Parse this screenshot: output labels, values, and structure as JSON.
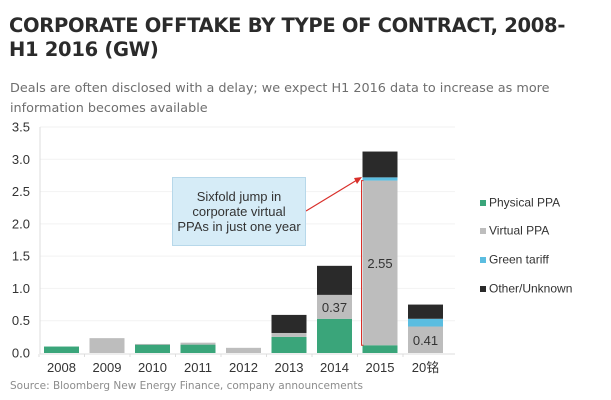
{
  "header": {
    "title_line1": "CORPORATE OFFTAKE BY TYPE OF CONTRACT, 2008-",
    "title_line2": "H1 2016 (GW)",
    "subtitle_line1": "Deals are often disclosed with a delay; we expect H1 2016 data to increase as more",
    "subtitle_line2": "information becomes available"
  },
  "source": "Source:  Bloomberg New Energy Finance, company announcements",
  "annotation": "Sixfold jump in corporate virtual PPAs in just one year",
  "colors": {
    "physical": "#3aa57a",
    "virtual": "#bdbdbd",
    "green_tariff": "#5bbde0",
    "other": "#2a2a2a",
    "arrow": "#d9302b"
  },
  "chart_data": {
    "type": "bar",
    "stacked": true,
    "title": "CORPORATE OFFTAKE BY TYPE OF CONTRACT, 2008-H1 2016 (GW)",
    "xlabel": "",
    "ylabel": "",
    "ylim": [
      0,
      3.5
    ],
    "yticks": [
      "0.0",
      "0.5",
      "1.0",
      "1.5",
      "2.0",
      "2.5",
      "3.0",
      "3.5"
    ],
    "yticks_values": [
      0,
      0.5,
      1.0,
      1.5,
      2.0,
      2.5,
      3.0,
      3.5
    ],
    "grid": true,
    "legend_position": "right",
    "categories": [
      "2008",
      "2009",
      "2010",
      "2011",
      "2012",
      "2013",
      "2014",
      "2015",
      "20铭"
    ],
    "series": [
      {
        "name": "Physical PPA",
        "values": [
          0.1,
          0.0,
          0.13,
          0.13,
          0.0,
          0.25,
          0.53,
          0.12,
          0.0
        ]
      },
      {
        "name": "Virtual PPA",
        "values": [
          0.0,
          0.23,
          0.01,
          0.03,
          0.08,
          0.06,
          0.37,
          2.55,
          0.41
        ]
      },
      {
        "name": "Green tariff",
        "values": [
          0.0,
          0.0,
          0.0,
          0.0,
          0.0,
          0.0,
          0.0,
          0.05,
          0.12
        ]
      },
      {
        "name": "Other/Unknown",
        "values": [
          0.0,
          0.0,
          0.0,
          0.0,
          0.0,
          0.28,
          0.45,
          0.4,
          0.22
        ]
      }
    ],
    "data_labels": [
      {
        "category": "2014",
        "series": "Virtual PPA",
        "text": "0.37"
      },
      {
        "category": "2015",
        "series": "Virtual PPA",
        "text": "2.55"
      },
      {
        "category": "20铭",
        "series": "Virtual PPA",
        "text": "0.41"
      }
    ]
  }
}
